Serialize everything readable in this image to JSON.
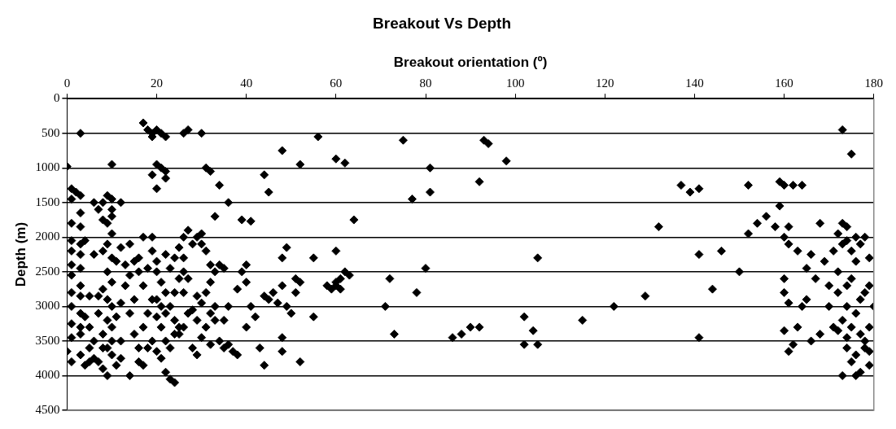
{
  "chart_data": {
    "type": "scatter",
    "title": "Breakout Vs Depth",
    "xlabel": "Breakout orientation (º)",
    "ylabel": "Depth (m)",
    "xlim": [
      0,
      180
    ],
    "xticks": [
      0,
      20,
      40,
      60,
      80,
      100,
      120,
      140,
      160,
      180
    ],
    "ylim": [
      4500,
      0
    ],
    "yticks": [
      0,
      500,
      1000,
      1500,
      2000,
      2500,
      3000,
      3500,
      4000,
      4500
    ],
    "grid": "y",
    "marker": "diamond",
    "legend": false,
    "series": [
      {
        "color": "#000000",
        "x": [
          3,
          0,
          1,
          2,
          3,
          1,
          3,
          1,
          3,
          1,
          3,
          1,
          3,
          1,
          3,
          1,
          3,
          1,
          3,
          1,
          3,
          1,
          3,
          1,
          0,
          3,
          1,
          5,
          6,
          4,
          7,
          5,
          6,
          7,
          4,
          5,
          6,
          8,
          5,
          3,
          4,
          6,
          7,
          8,
          9,
          10,
          8,
          9,
          10,
          10,
          10,
          12,
          10,
          9,
          8,
          10,
          11,
          9,
          10,
          8,
          9,
          10,
          7,
          9,
          10,
          8,
          10,
          9,
          10,
          8,
          9,
          11,
          12,
          12,
          11,
          12,
          13,
          14,
          13,
          12,
          14,
          15,
          16,
          15,
          14,
          15,
          16,
          14,
          17,
          16,
          18,
          19,
          17,
          18,
          19,
          17,
          18,
          19,
          17,
          19,
          16,
          20,
          17,
          18,
          19,
          20,
          21,
          22,
          19,
          20,
          21,
          22,
          19,
          20,
          22,
          20,
          21,
          22,
          20,
          21,
          22,
          20,
          21,
          22,
          20,
          21,
          23,
          24,
          22,
          23,
          24,
          25,
          24,
          23,
          24,
          25,
          23,
          24,
          25,
          26,
          22,
          26,
          27,
          28,
          26,
          27,
          26,
          27,
          26,
          25,
          28,
          29,
          30,
          31,
          29,
          28,
          30,
          29,
          30,
          31,
          29,
          30,
          32,
          33,
          32,
          31,
          33,
          32,
          33,
          34,
          32,
          35,
          36,
          37,
          38,
          36,
          35,
          35,
          34,
          33,
          34,
          32,
          31,
          26,
          27,
          30,
          36,
          39,
          41,
          40,
          39,
          40,
          38,
          41,
          40,
          42,
          43,
          45,
          44,
          46,
          48,
          49,
          48,
          47,
          49,
          48,
          50,
          51,
          51,
          52,
          52,
          44,
          48,
          44,
          45,
          48,
          52,
          56,
          60,
          60,
          61,
          62,
          60,
          59,
          61,
          55,
          55,
          58,
          60,
          62,
          64,
          63,
          71,
          72,
          73,
          75,
          77,
          78,
          80,
          81,
          81,
          86,
          88,
          90,
          92,
          92,
          93,
          94,
          98,
          102,
          102,
          104,
          105,
          105,
          115,
          122,
          129,
          132,
          137,
          139,
          141,
          141,
          141,
          144,
          146,
          150,
          152,
          152,
          154,
          156,
          158,
          159,
          159,
          160,
          161,
          160,
          161,
          162,
          163,
          164,
          160,
          160,
          161,
          160,
          161,
          162,
          163,
          164,
          165,
          165,
          166,
          167,
          166,
          168,
          168,
          169,
          170,
          170,
          171,
          171,
          172,
          172,
          173,
          174,
          173,
          172,
          174,
          173,
          174,
          175,
          176,
          177,
          176,
          175,
          177,
          176,
          178,
          177,
          176,
          178,
          179,
          179,
          180,
          179,
          179,
          178,
          177,
          176,
          173,
          179,
          173,
          175,
          174,
          175,
          174,
          178,
          174,
          172,
          175
        ],
        "values": [
          500,
          980,
          1300,
          1350,
          1400,
          1450,
          1650,
          1800,
          1850,
          2050,
          2100,
          2200,
          2250,
          2400,
          2450,
          2550,
          2700,
          2800,
          2850,
          3000,
          3100,
          3250,
          3300,
          3450,
          3650,
          3700,
          3800,
          3800,
          3750,
          3850,
          3800,
          2850,
          2250,
          2850,
          3150,
          3300,
          3500,
          3600,
          3600,
          3400,
          2050,
          1500,
          1600,
          1750,
          1800,
          1700,
          1500,
          1400,
          1450,
          1600,
          950,
          1500,
          1950,
          2100,
          2200,
          2300,
          2350,
          2500,
          2650,
          2750,
          2900,
          3000,
          3100,
          3200,
          3300,
          3400,
          3500,
          3600,
          3700,
          3900,
          4000,
          3850,
          3750,
          3500,
          3150,
          2950,
          2700,
          2550,
          2400,
          2150,
          2100,
          2350,
          2500,
          2900,
          3100,
          3400,
          3600,
          4000,
          3850,
          3800,
          3600,
          3500,
          3300,
          3100,
          2900,
          2700,
          2450,
          2200,
          2000,
          2000,
          2300,
          2350,
          350,
          450,
          500,
          450,
          500,
          550,
          550,
          950,
          1000,
          1050,
          1100,
          1300,
          1150,
          2500,
          2650,
          2800,
          2900,
          3000,
          3100,
          3150,
          3300,
          3500,
          3650,
          3750,
          4050,
          4100,
          3950,
          3600,
          3400,
          3300,
          3200,
          3000,
          2800,
          2600,
          2450,
          2300,
          2150,
          2300,
          2250,
          2000,
          1900,
          2100,
          2500,
          2600,
          2800,
          3100,
          3300,
          3400,
          3600,
          3700,
          3450,
          3300,
          3200,
          3050,
          2950,
          2850,
          2100,
          2200,
          2000,
          1950,
          2400,
          2500,
          2650,
          2800,
          3000,
          3100,
          3200,
          3500,
          3550,
          3600,
          3550,
          3650,
          3700,
          3000,
          3200,
          2450,
          2400,
          1700,
          1250,
          1050,
          1000,
          500,
          450,
          500,
          1500,
          1750,
          1770,
          2400,
          2500,
          2650,
          2750,
          3000,
          3300,
          3150,
          3600,
          2900,
          2850,
          2800,
          2700,
          2150,
          2300,
          2950,
          3000,
          3450,
          3100,
          2600,
          2800,
          2650,
          3800,
          3850,
          3650,
          1100,
          1350,
          750,
          950,
          550,
          2200,
          2700,
          2600,
          2500,
          2650,
          2750,
          2750,
          2300,
          3150,
          2700,
          870,
          930,
          1750,
          2550,
          3000,
          2600,
          3400,
          600,
          1450,
          2800,
          2450,
          1000,
          1350,
          3450,
          3400,
          3300,
          1200,
          3300,
          600,
          650,
          900,
          3150,
          3550,
          3350,
          2300,
          3550,
          3200,
          3000,
          2850,
          1850,
          1250,
          1350,
          1300,
          2250,
          3450,
          2750,
          2200,
          2500,
          1250,
          1950,
          1800,
          1700,
          1850,
          1200,
          1550,
          1250,
          1850,
          2000,
          2100,
          1250,
          2200,
          1250,
          2600,
          2800,
          2950,
          3350,
          3650,
          3550,
          3300,
          3000,
          2450,
          2900,
          2250,
          2600,
          3500,
          1800,
          3400,
          2350,
          2700,
          3000,
          2200,
          3300,
          2500,
          1950,
          1800,
          1850,
          2100,
          2800,
          2700,
          3200,
          3450,
          3300,
          2000,
          2100,
          2350,
          2600,
          2900,
          3100,
          2800,
          3400,
          3700,
          3600,
          3650,
          3300,
          3000,
          2700,
          2300,
          2000,
          3950,
          4000,
          4000,
          3850,
          450,
          800,
          2050,
          2200,
          3000,
          3500,
          3600,
          3350,
          3800
        ]
      }
    ]
  }
}
